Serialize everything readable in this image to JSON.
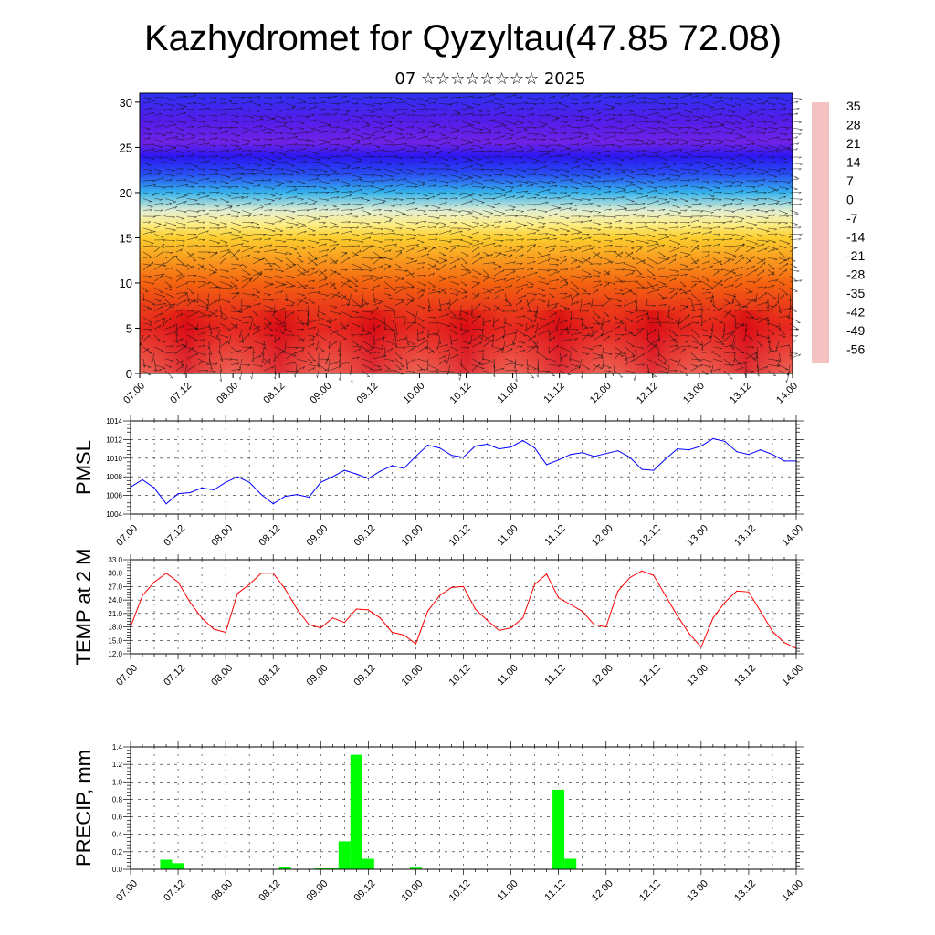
{
  "title": "Kazhydromet for Qyzyltau(47.85 72.08)",
  "subtitle": "07 ☆☆☆☆☆☆☆☆ 2025",
  "chart_data": [
    {
      "type": "heatmap",
      "description_role": "vertical temperature cross-section with wind barbs",
      "x_tick_labels": [
        "07.00",
        "07.12",
        "08.00",
        "08.12",
        "09.00",
        "09.12",
        "10.00",
        "10.12",
        "11.00",
        "11.12",
        "12.00",
        "12.12",
        "13.00",
        "13.12",
        "14.00"
      ],
      "y_tick_labels": [
        "0",
        "5",
        "10",
        "15",
        "20",
        "25",
        "30"
      ],
      "ylim": [
        0,
        31
      ],
      "colorbar": {
        "labels": [
          "35",
          "28",
          "21",
          "14",
          "7",
          "0",
          "-7",
          "-14",
          "-21",
          "-28",
          "-35",
          "-42",
          "-49",
          "-56"
        ],
        "colors": [
          "#f4c2c2",
          "#e8474a",
          "#e0101a",
          "#ee3a12",
          "#f56a10",
          "#f9a520",
          "#fcd530",
          "#fdf7a8",
          "#cce7f2",
          "#35b3ec",
          "#1f7cee",
          "#2d3ff5",
          "#2b10ef",
          "#8a2be2"
        ]
      },
      "temperature_profile": {
        "heights": [
          0,
          5,
          10,
          15,
          16.5,
          18,
          20,
          22,
          24,
          25.5,
          28,
          31
        ],
        "values": [
          30,
          22,
          8,
          -6,
          -12,
          -18,
          -28,
          -40,
          -48,
          -54,
          -52,
          -44
        ]
      }
    },
    {
      "type": "line",
      "ylabel": "PMSL",
      "ylim": [
        1004,
        1014
      ],
      "y_tick_labels": [
        "1004",
        "1006",
        "1008",
        "1010",
        "1012",
        "1014"
      ],
      "x_tick_labels": [
        "07.00",
        "07.12",
        "08.00",
        "08.12",
        "09.00",
        "09.12",
        "10.00",
        "10.12",
        "11.00",
        "11.12",
        "12.00",
        "12.12",
        "13.00",
        "13.12",
        "14.00"
      ],
      "color": "#0000ff",
      "x": [
        0,
        3,
        6,
        9,
        12,
        15,
        18,
        21,
        24,
        27,
        30,
        33,
        36,
        39,
        42,
        45,
        48,
        51,
        54,
        57,
        60,
        63,
        66,
        69,
        72,
        75,
        78,
        81,
        84,
        87,
        90,
        93,
        96,
        99,
        102,
        105,
        108,
        111,
        114,
        117,
        120,
        123,
        126,
        129,
        132,
        135,
        138,
        141,
        144,
        147,
        150,
        153,
        156,
        159,
        162,
        165,
        168
      ],
      "values": [
        1006.9,
        1007.7,
        1006.8,
        1005.1,
        1006.2,
        1006.3,
        1006.8,
        1006.6,
        1007.4,
        1008.0,
        1007.4,
        1006.1,
        1005.1,
        1005.9,
        1006.1,
        1005.8,
        1007.4,
        1008.0,
        1008.7,
        1008.3,
        1007.8,
        1008.6,
        1009.2,
        1008.9,
        1010.2,
        1011.4,
        1011.1,
        1010.3,
        1010.1,
        1011.3,
        1011.5,
        1011.0,
        1011.2,
        1011.9,
        1011.1,
        1009.3,
        1009.8,
        1010.4,
        1010.6,
        1010.2,
        1010.5,
        1010.8,
        1010.1,
        1008.8,
        1008.7,
        1009.9,
        1011.0,
        1010.9,
        1011.3,
        1012.1,
        1011.8,
        1010.7,
        1010.4,
        1010.9,
        1010.4,
        1009.7,
        1009.7
      ]
    },
    {
      "type": "line",
      "ylabel": "TEMP at 2 M",
      "ylim": [
        12.0,
        33.0
      ],
      "y_tick_labels": [
        "12.0",
        "15.0",
        "18.0",
        "21.0",
        "24.0",
        "27.0",
        "30.0",
        "33.0"
      ],
      "x_tick_labels": [
        "07.00",
        "07.12",
        "08.00",
        "08.12",
        "09.00",
        "09.12",
        "10.00",
        "10.12",
        "11.00",
        "11.12",
        "12.00",
        "12.12",
        "13.00",
        "13.12",
        "14.00"
      ],
      "color": "#ff0000",
      "x": [
        0,
        3,
        6,
        9,
        12,
        15,
        18,
        21,
        24,
        27,
        30,
        33,
        36,
        39,
        42,
        45,
        48,
        51,
        54,
        57,
        60,
        63,
        66,
        69,
        72,
        75,
        78,
        81,
        84,
        87,
        90,
        93,
        96,
        99,
        102,
        105,
        108,
        111,
        114,
        117,
        120,
        123,
        126,
        129,
        132,
        135,
        138,
        141,
        144,
        147,
        150,
        153,
        156,
        159,
        162,
        165,
        168
      ],
      "values": [
        18.0,
        25.0,
        28.0,
        30.0,
        28.0,
        23.5,
        20.0,
        17.5,
        16.8,
        25.5,
        27.5,
        30.0,
        30.0,
        26.5,
        22.0,
        18.5,
        17.8,
        20.0,
        19.0,
        22.0,
        21.8,
        20.0,
        16.8,
        16.2,
        14.2,
        21.5,
        25.0,
        26.8,
        27.0,
        22.0,
        19.5,
        17.2,
        17.8,
        20.0,
        27.5,
        29.8,
        24.5,
        23.0,
        21.5,
        18.5,
        18.0,
        26.0,
        29.0,
        30.5,
        29.5,
        25.0,
        20.5,
        16.5,
        13.5,
        20.0,
        23.5,
        26.0,
        25.8,
        21.5,
        17.0,
        14.5,
        13.2
      ]
    },
    {
      "type": "bar",
      "ylabel": "PRECIP, mm",
      "ylim": [
        0,
        1.4
      ],
      "y_tick_labels": [
        "0.0",
        "0.2",
        "0.4",
        "0.6",
        "0.8",
        "1.0",
        "1.2",
        "1.4"
      ],
      "x_tick_labels": [
        "07.00",
        "07.12",
        "08.00",
        "08.12",
        "09.00",
        "09.12",
        "10.00",
        "10.12",
        "11.00",
        "11.12",
        "12.00",
        "12.12",
        "13.00",
        "13.12",
        "14.00"
      ],
      "color": "#00ff00",
      "x": [
        9,
        12,
        39,
        48,
        51,
        54,
        57,
        60,
        72,
        108,
        111
      ],
      "values": [
        0.11,
        0.07,
        0.03,
        0.01,
        0.01,
        0.32,
        1.31,
        0.12,
        0.02,
        0.91,
        0.12
      ]
    }
  ]
}
